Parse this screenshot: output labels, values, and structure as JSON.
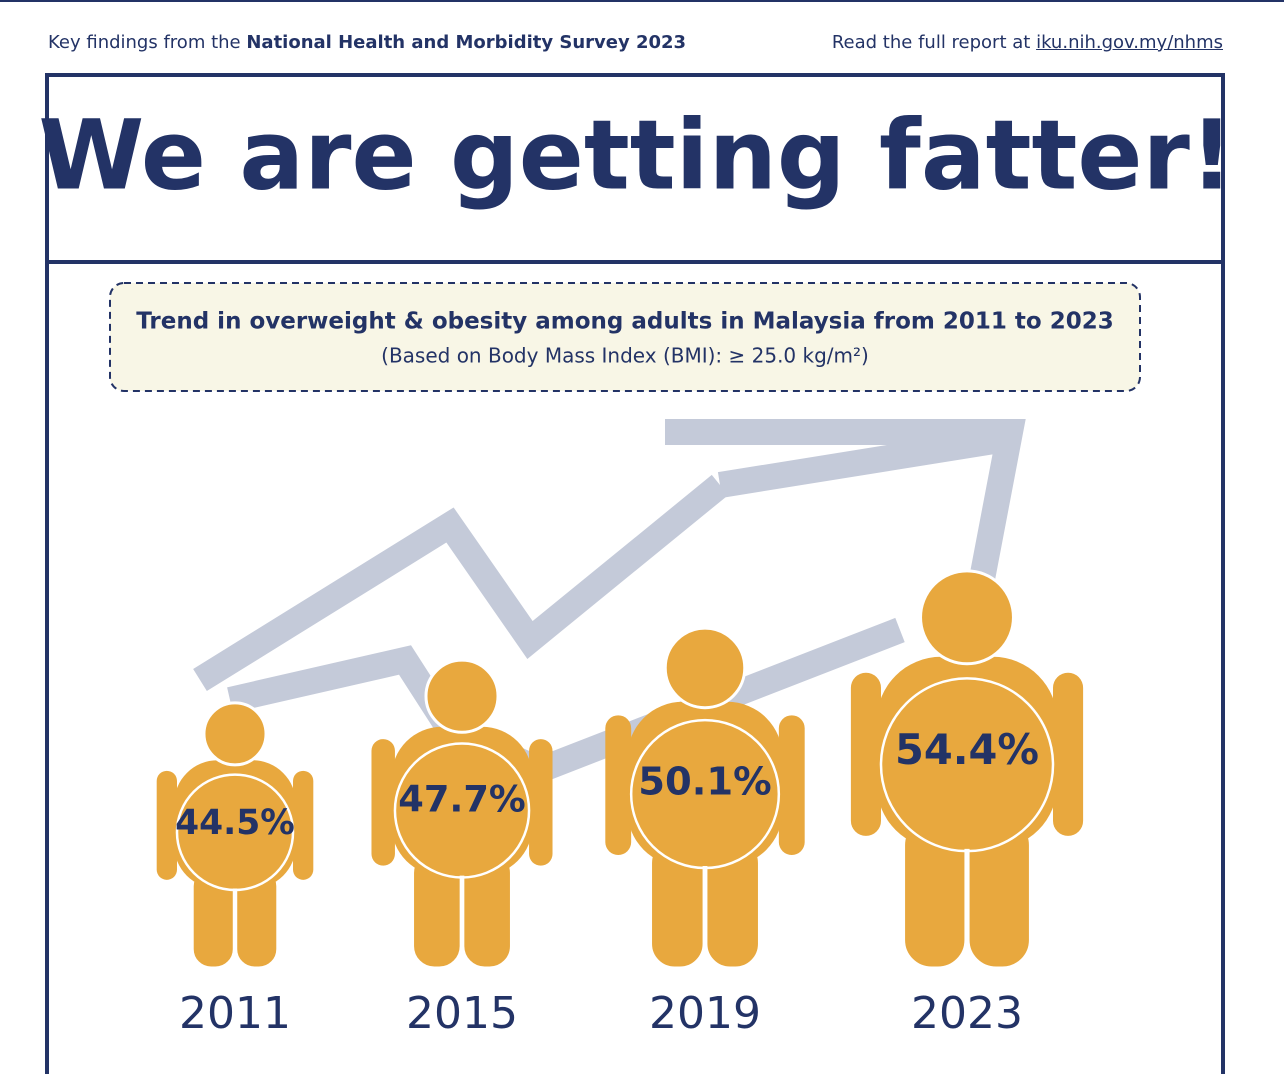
{
  "header": {
    "left_prefix": "Key findings from the",
    "left_bold": "National Health and Morbidity Survey 2023",
    "right_prefix": "Read the full report at",
    "link": "iku.nih.gov.my/nhms"
  },
  "chart_data": {
    "type": "pictogram",
    "title": "We are getting fatter!",
    "subtitle": "Trend in overweight & obesity among adults in Malaysia from 2011 to 2023",
    "note": "(Based on Body Mass Index (BMI): ≥ 25.0 kg/m²)",
    "categories": [
      "2011",
      "2015",
      "2019",
      "2023"
    ],
    "values": [
      44.5,
      47.7,
      50.1,
      54.4
    ],
    "value_labels": [
      "44.5%",
      "47.7%",
      "50.1%",
      "54.4%"
    ],
    "color": "#e8a83e"
  }
}
